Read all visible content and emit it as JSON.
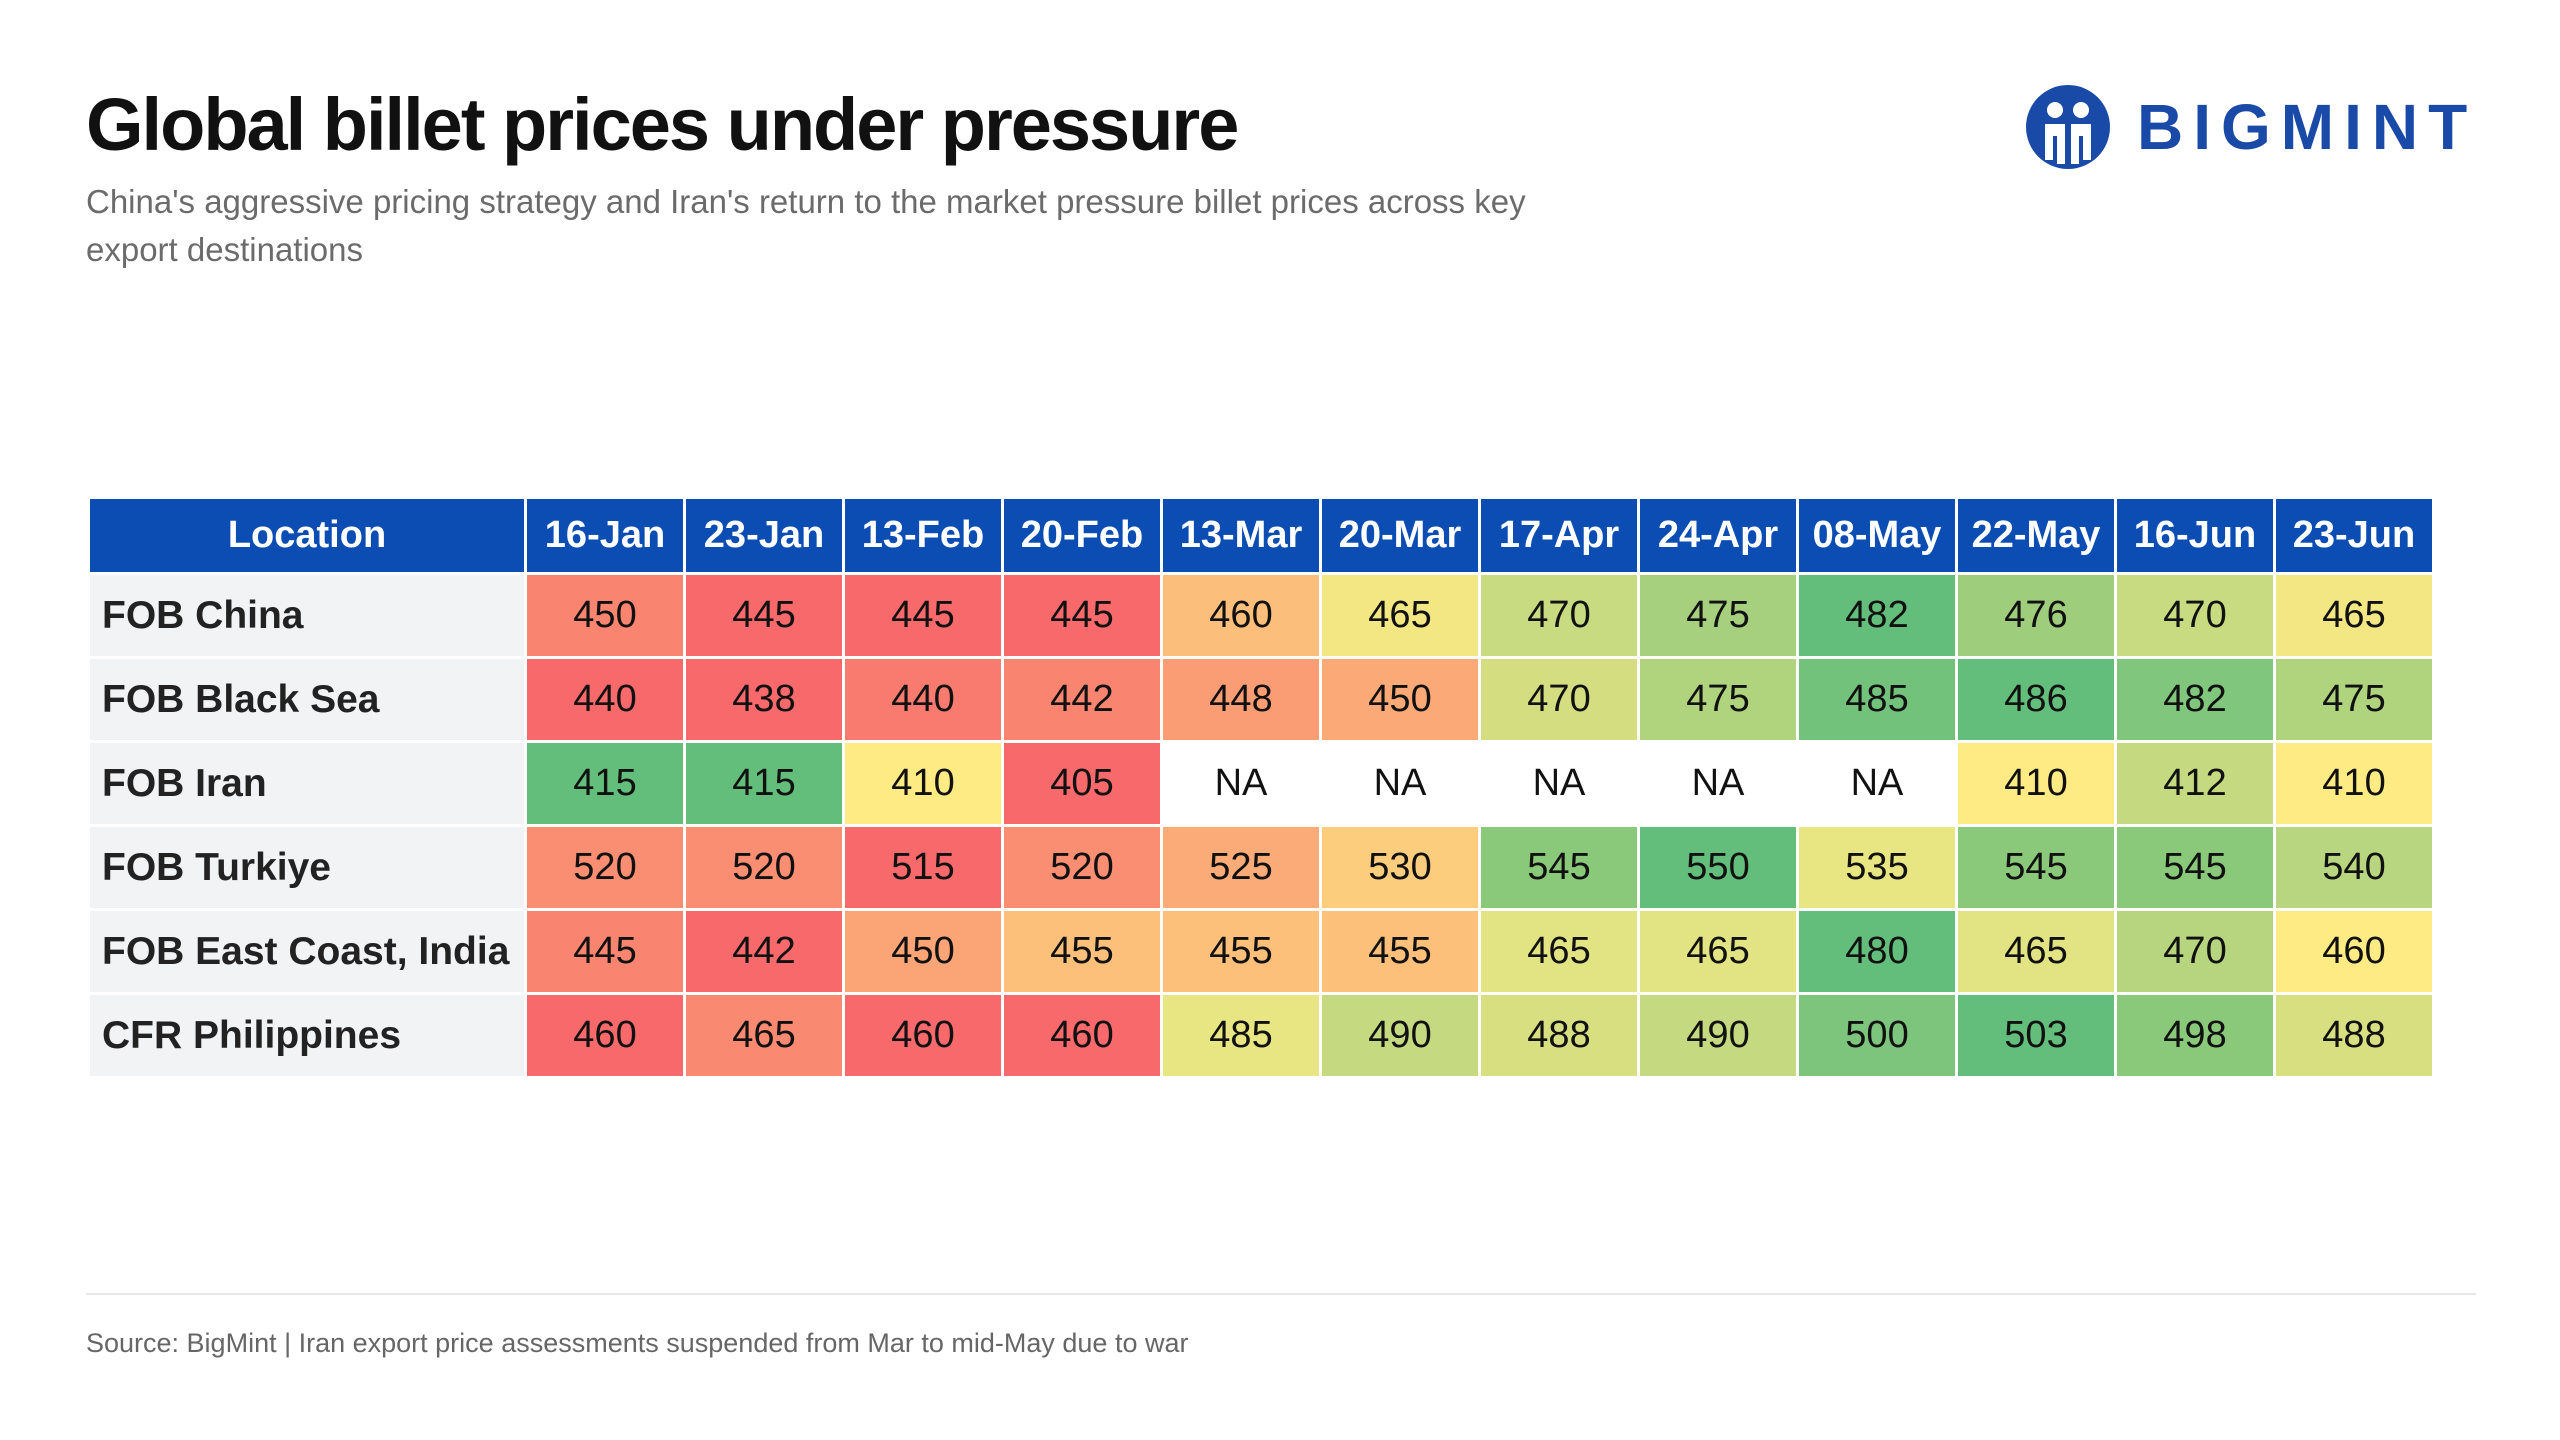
{
  "header": {
    "title": "Global billet prices under pressure",
    "subtitle": "China's aggressive pricing strategy and Iran's return to the market pressure billet prices across key export destinations",
    "logo": "BIGMINT"
  },
  "table": {
    "header_color": "#0b4db3",
    "label_color": "#f2f3f5",
    "columns": [
      "Location",
      "16-Jan",
      "23-Jan",
      "13-Feb",
      "20-Feb",
      "13-Mar",
      "20-Mar",
      "17-Apr",
      "24-Apr",
      "08-May",
      "22-May",
      "16-Jun",
      "23-Jun"
    ],
    "rows": [
      {
        "label": "FOB China",
        "cells": [
          450,
          445,
          445,
          445,
          460,
          465,
          470,
          475,
          482,
          476,
          470,
          465
        ],
        "colors": [
          "#f98570",
          "#f8696b",
          "#f8696b",
          "#f8696b",
          "#fcbf7b",
          "#f2e783",
          "#c8db80",
          "#a6d07d",
          "#63be7b",
          "#9ece7c",
          "#c8db80",
          "#f2e783"
        ]
      },
      {
        "label": "FOB Black Sea",
        "cells": [
          440,
          438,
          440,
          442,
          448,
          450,
          470,
          475,
          485,
          486,
          482,
          475
        ],
        "colors": [
          "#f8696b",
          "#f8696b",
          "#f97a6e",
          "#f98570",
          "#fa9d75",
          "#fbaa77",
          "#d4de81",
          "#b0d37e",
          "#72c27b",
          "#63be7b",
          "#80c67c",
          "#b0d37e"
        ]
      },
      {
        "label": "FOB Iran",
        "cells": [
          415,
          415,
          410,
          405,
          "NA",
          "NA",
          "NA",
          "NA",
          "NA",
          410,
          412,
          410
        ],
        "colors": [
          "#63be7b",
          "#63be7b",
          "#ffeb84",
          "#f8696b",
          "#ffffff",
          "#ffffff",
          "#ffffff",
          "#ffffff",
          "#ffffff",
          "#ffeb84",
          "#c4d980",
          "#ffeb84"
        ]
      },
      {
        "label": "FOB Turkiye",
        "cells": [
          520,
          520,
          515,
          520,
          525,
          530,
          545,
          550,
          535,
          545,
          545,
          540
        ],
        "colors": [
          "#f98e72",
          "#f98e72",
          "#f8696b",
          "#f98e72",
          "#fbab77",
          "#fdcd7e",
          "#8ac97a",
          "#63be7b",
          "#e8e583",
          "#8ac97a",
          "#8ac97a",
          "#b8d57f"
        ]
      },
      {
        "label": "FOB East Coast, India",
        "cells": [
          445,
          442,
          450,
          455,
          455,
          455,
          465,
          465,
          480,
          465,
          470,
          460
        ],
        "colors": [
          "#f98570",
          "#f8696b",
          "#fba476",
          "#fcc07b",
          "#fcc07b",
          "#fcc07b",
          "#e2e383",
          "#e2e383",
          "#63be7b",
          "#e2e383",
          "#b7d57f",
          "#ffeb84"
        ]
      },
      {
        "label": "CFR Philippines",
        "cells": [
          460,
          465,
          460,
          460,
          485,
          490,
          488,
          490,
          500,
          503,
          498,
          488
        ],
        "colors": [
          "#f8696b",
          "#f98a71",
          "#f8696b",
          "#f8696b",
          "#e8e583",
          "#c4d980",
          "#d8df81",
          "#c4d980",
          "#7dc57c",
          "#63be7b",
          "#8ac97a",
          "#d8df81"
        ]
      }
    ]
  },
  "footer": {
    "source": "Source: BigMint | Iran export price assessments suspended from Mar to mid-May due to war"
  }
}
